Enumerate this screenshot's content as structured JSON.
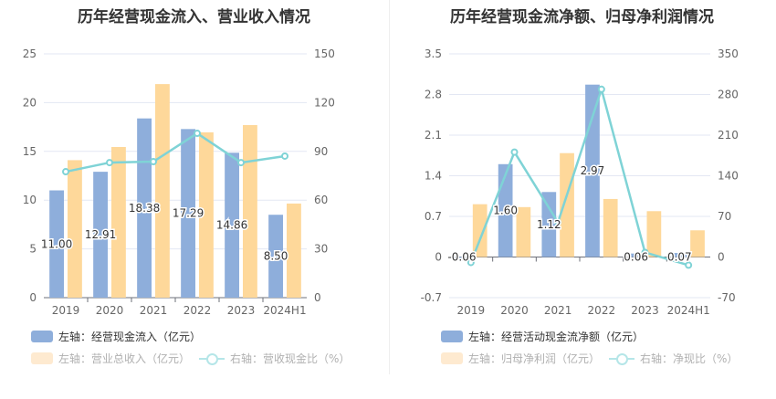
{
  "colors": {
    "blue": "#8eaedb",
    "orange": "#fed89a",
    "line": "#7fd3d6",
    "grid": "#e3e7f3",
    "axis": "#666666"
  },
  "chart_data": [
    {
      "type": "bar",
      "title": "历年经营现金流入、营业收入情况",
      "categories": [
        "2019",
        "2020",
        "2021",
        "2022",
        "2023",
        "2024H1"
      ],
      "left_axis": {
        "ylim": [
          0,
          25
        ],
        "ticks": [
          "0",
          "5",
          "10",
          "15",
          "20",
          "25"
        ]
      },
      "right_axis": {
        "ylim": [
          0,
          150
        ],
        "ticks": [
          "0",
          "30",
          "60",
          "90",
          "120",
          "150"
        ]
      },
      "series": [
        {
          "name": "左轴：经营现金流入（亿元）",
          "type": "bar",
          "axis": "left",
          "values": [
            11.0,
            12.91,
            18.38,
            17.29,
            14.86,
            8.5
          ],
          "labels": [
            "11.00",
            "12.91",
            "18.38",
            "17.29",
            "14.86",
            "8.50"
          ]
        },
        {
          "name": "左轴：营业总收入（亿元）",
          "type": "bar",
          "axis": "left",
          "values": [
            14.1,
            15.45,
            21.9,
            16.95,
            17.7,
            9.65
          ]
        },
        {
          "name": "右轴：营收现金比（%）",
          "type": "line",
          "axis": "right",
          "values": [
            77.5,
            83.1,
            83.7,
            101.1,
            83.1,
            87.1
          ]
        }
      ],
      "legend": [
        {
          "label": "左轴：经营现金流入（亿元）",
          "kind": "bar",
          "active": true
        },
        {
          "label": "左轴：营业总收入（亿元）",
          "kind": "bar",
          "active": false
        },
        {
          "label": "右轴：营收现金比（%）",
          "kind": "line",
          "active": false
        }
      ],
      "legend_position": "bottom-left",
      "grid": true
    },
    {
      "type": "bar",
      "title": "历年经营现金流净额、归母净利润情况",
      "categories": [
        "2019",
        "2020",
        "2021",
        "2022",
        "2023",
        "2024H1"
      ],
      "left_axis": {
        "ylim": [
          -0.7,
          3.5
        ],
        "ticks": [
          "-0.7",
          "0",
          "0.7",
          "1.4",
          "2.1",
          "2.8",
          "3.5"
        ]
      },
      "right_axis": {
        "ylim": [
          -70,
          350
        ],
        "ticks": [
          "-70",
          "0",
          "70",
          "140",
          "210",
          "280",
          "350"
        ]
      },
      "series": [
        {
          "name": "左轴：经营活动现金流净额（亿元）",
          "type": "bar",
          "axis": "left",
          "values": [
            -0.06,
            1.6,
            1.12,
            2.97,
            0.06,
            0.07
          ],
          "labels": [
            "-0.06",
            "1.60",
            "1.12",
            "2.97",
            "0.06",
            "0.07"
          ]
        },
        {
          "name": "左轴：归母净利润（亿元）",
          "type": "bar",
          "axis": "left",
          "values": [
            0.91,
            0.86,
            1.79,
            1.0,
            0.79,
            0.46
          ]
        },
        {
          "name": "右轴：净现比（%）",
          "type": "line",
          "axis": "right",
          "values": [
            -9.4,
            180.8,
            59.7,
            289,
            7.9,
            -14
          ]
        }
      ],
      "legend": [
        {
          "label": "左轴：经营活动现金流净额（亿元）",
          "kind": "bar",
          "active": true
        },
        {
          "label": "左轴：归母净利润（亿元）",
          "kind": "bar",
          "active": false
        },
        {
          "label": "右轴：净现比（%）",
          "kind": "line",
          "active": false
        }
      ],
      "legend_position": "bottom-left",
      "grid": true
    }
  ]
}
